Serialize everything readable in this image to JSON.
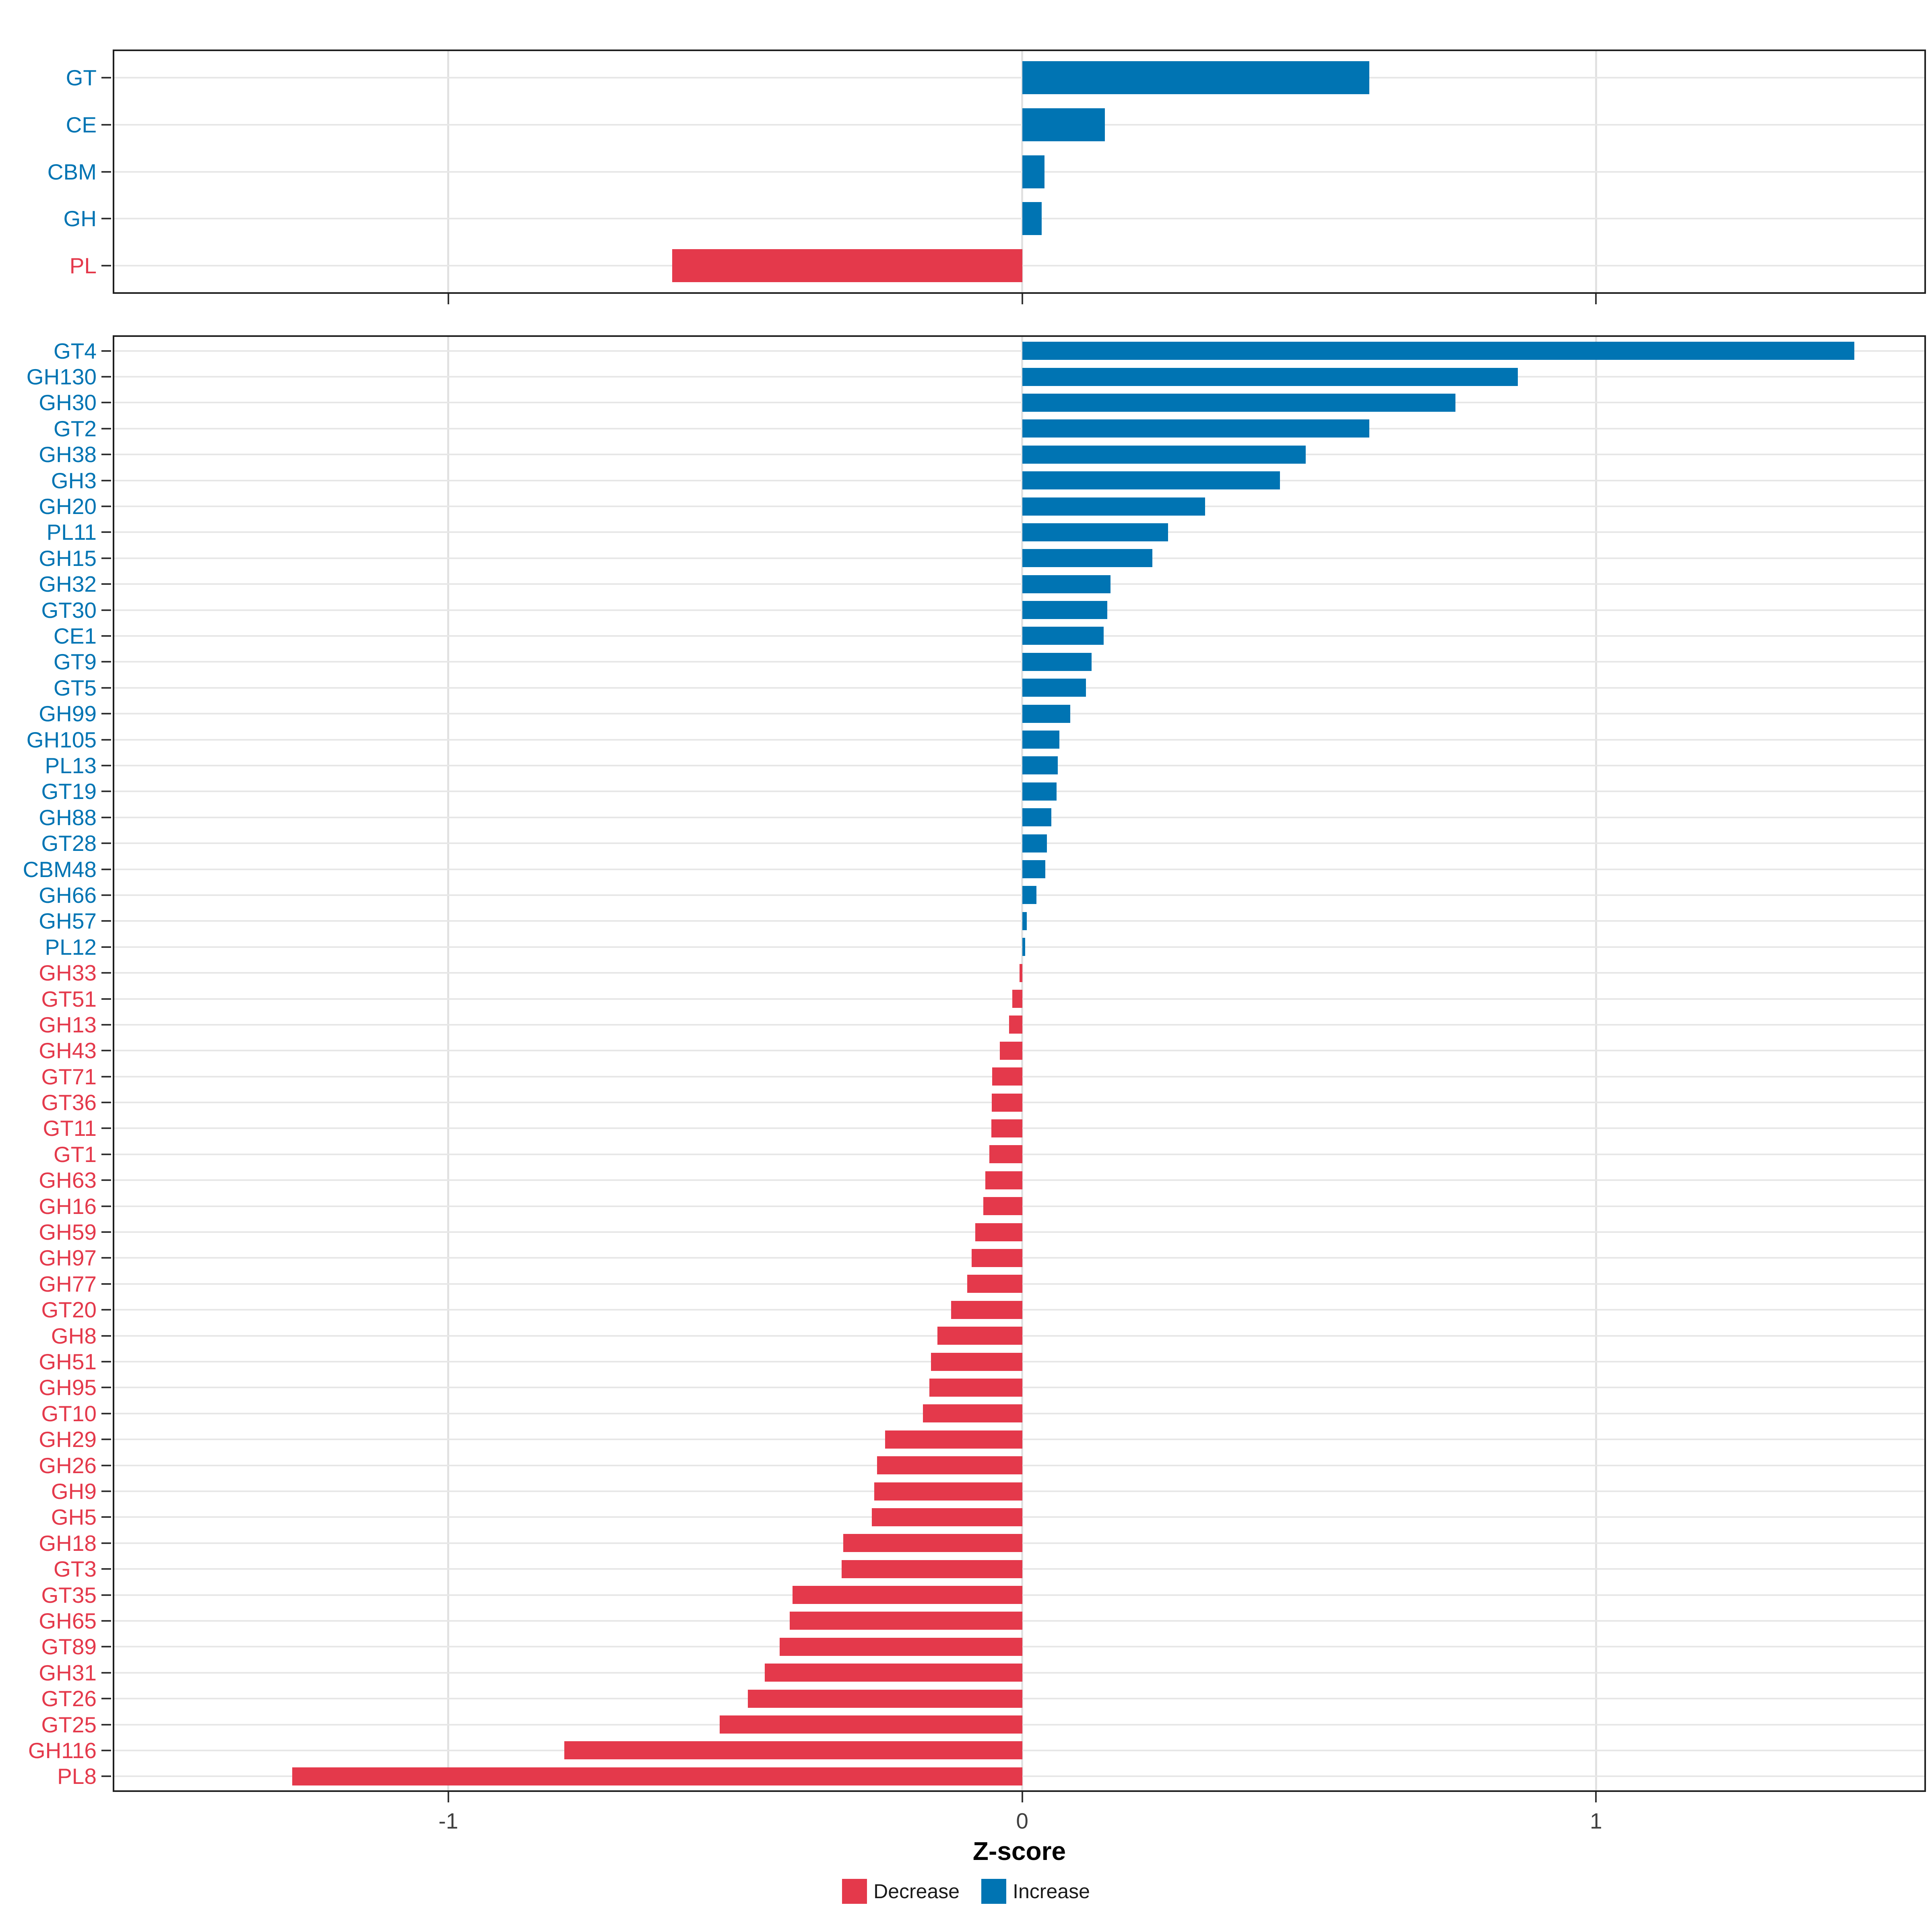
{
  "chart_data": {
    "type": "bar",
    "orientation": "horizontal",
    "title": "",
    "xlabel": "Z-score",
    "ylabel": "",
    "grid": "major-only",
    "legend_position": "bottom",
    "x_axis": {
      "ticks": [
        -1,
        0,
        1
      ],
      "tick_labels": [
        "-1",
        "0",
        "1"
      ],
      "range": [
        -1.585,
        1.575
      ]
    },
    "legend": [
      {
        "label": "Decrease",
        "color": "#E4394B"
      },
      {
        "label": "Increase",
        "color": "#0074B3"
      }
    ],
    "panels": [
      {
        "name": "cazyme-class-summary",
        "rows": [
          {
            "label": "GT",
            "value": 0.605,
            "change": "Increase"
          },
          {
            "label": "CE",
            "value": 0.144,
            "change": "Increase"
          },
          {
            "label": "CBM",
            "value": 0.039,
            "change": "Increase"
          },
          {
            "label": "GH",
            "value": 0.034,
            "change": "Increase"
          },
          {
            "label": "PL",
            "value": -0.61,
            "change": "Decrease"
          }
        ]
      },
      {
        "name": "cazyme-family-detail",
        "rows": [
          {
            "label": "GT4",
            "value": 1.45,
            "change": "Increase"
          },
          {
            "label": "GH130",
            "value": 0.864,
            "change": "Increase"
          },
          {
            "label": "GH30",
            "value": 0.755,
            "change": "Increase"
          },
          {
            "label": "GT2",
            "value": 0.605,
            "change": "Increase"
          },
          {
            "label": "GH38",
            "value": 0.494,
            "change": "Increase"
          },
          {
            "label": "GH3",
            "value": 0.449,
            "change": "Increase"
          },
          {
            "label": "GH20",
            "value": 0.319,
            "change": "Increase"
          },
          {
            "label": "PL11",
            "value": 0.254,
            "change": "Increase"
          },
          {
            "label": "GH15",
            "value": 0.227,
            "change": "Increase"
          },
          {
            "label": "GH32",
            "value": 0.154,
            "change": "Increase"
          },
          {
            "label": "GT30",
            "value": 0.148,
            "change": "Increase"
          },
          {
            "label": "CE1",
            "value": 0.142,
            "change": "Increase"
          },
          {
            "label": "GT9",
            "value": 0.121,
            "change": "Increase"
          },
          {
            "label": "GT5",
            "value": 0.111,
            "change": "Increase"
          },
          {
            "label": "GH99",
            "value": 0.084,
            "change": "Increase"
          },
          {
            "label": "GH105",
            "value": 0.065,
            "change": "Increase"
          },
          {
            "label": "PL13",
            "value": 0.062,
            "change": "Increase"
          },
          {
            "label": "GT19",
            "value": 0.06,
            "change": "Increase"
          },
          {
            "label": "GH88",
            "value": 0.051,
            "change": "Increase"
          },
          {
            "label": "GT28",
            "value": 0.043,
            "change": "Increase"
          },
          {
            "label": "CBM48",
            "value": 0.04,
            "change": "Increase"
          },
          {
            "label": "GH66",
            "value": 0.025,
            "change": "Increase"
          },
          {
            "label": "GH57",
            "value": 0.008,
            "change": "Increase"
          },
          {
            "label": "PL12",
            "value": 0.005,
            "change": "Increase"
          },
          {
            "label": "GH33",
            "value": -0.005,
            "change": "Decrease"
          },
          {
            "label": "GT51",
            "value": -0.017,
            "change": "Decrease"
          },
          {
            "label": "GH13",
            "value": -0.023,
            "change": "Decrease"
          },
          {
            "label": "GH43",
            "value": -0.039,
            "change": "Decrease"
          },
          {
            "label": "GT71",
            "value": -0.052,
            "change": "Decrease"
          },
          {
            "label": "GT36",
            "value": -0.053,
            "change": "Decrease"
          },
          {
            "label": "GT11",
            "value": -0.054,
            "change": "Decrease"
          },
          {
            "label": "GT1",
            "value": -0.057,
            "change": "Decrease"
          },
          {
            "label": "GH63",
            "value": -0.064,
            "change": "Decrease"
          },
          {
            "label": "GH16",
            "value": -0.068,
            "change": "Decrease"
          },
          {
            "label": "GH59",
            "value": -0.082,
            "change": "Decrease"
          },
          {
            "label": "GH97",
            "value": -0.088,
            "change": "Decrease"
          },
          {
            "label": "GH77",
            "value": -0.096,
            "change": "Decrease"
          },
          {
            "label": "GT20",
            "value": -0.124,
            "change": "Decrease"
          },
          {
            "label": "GH8",
            "value": -0.148,
            "change": "Decrease"
          },
          {
            "label": "GH51",
            "value": -0.159,
            "change": "Decrease"
          },
          {
            "label": "GH95",
            "value": -0.162,
            "change": "Decrease"
          },
          {
            "label": "GT10",
            "value": -0.173,
            "change": "Decrease"
          },
          {
            "label": "GH29",
            "value": -0.239,
            "change": "Decrease"
          },
          {
            "label": "GH26",
            "value": -0.253,
            "change": "Decrease"
          },
          {
            "label": "GH9",
            "value": -0.258,
            "change": "Decrease"
          },
          {
            "label": "GH5",
            "value": -0.262,
            "change": "Decrease"
          },
          {
            "label": "GH18",
            "value": -0.312,
            "change": "Decrease"
          },
          {
            "label": "GT3",
            "value": -0.315,
            "change": "Decrease"
          },
          {
            "label": "GT35",
            "value": -0.4,
            "change": "Decrease"
          },
          {
            "label": "GH65",
            "value": -0.405,
            "change": "Decrease"
          },
          {
            "label": "GT89",
            "value": -0.423,
            "change": "Decrease"
          },
          {
            "label": "GH31",
            "value": -0.449,
            "change": "Decrease"
          },
          {
            "label": "GT26",
            "value": -0.478,
            "change": "Decrease"
          },
          {
            "label": "GT25",
            "value": -0.527,
            "change": "Decrease"
          },
          {
            "label": "GH116",
            "value": -0.798,
            "change": "Decrease"
          },
          {
            "label": "PL8",
            "value": -1.272,
            "change": "Decrease"
          }
        ]
      }
    ]
  },
  "colors": {
    "increase": "#0074B3",
    "decrease": "#E4394B",
    "grid": "#E6E6E6",
    "panel_border": "#1F1F1F",
    "tick": "#333333",
    "x_tick_label": "#404040",
    "background": "#FFFFFF"
  }
}
